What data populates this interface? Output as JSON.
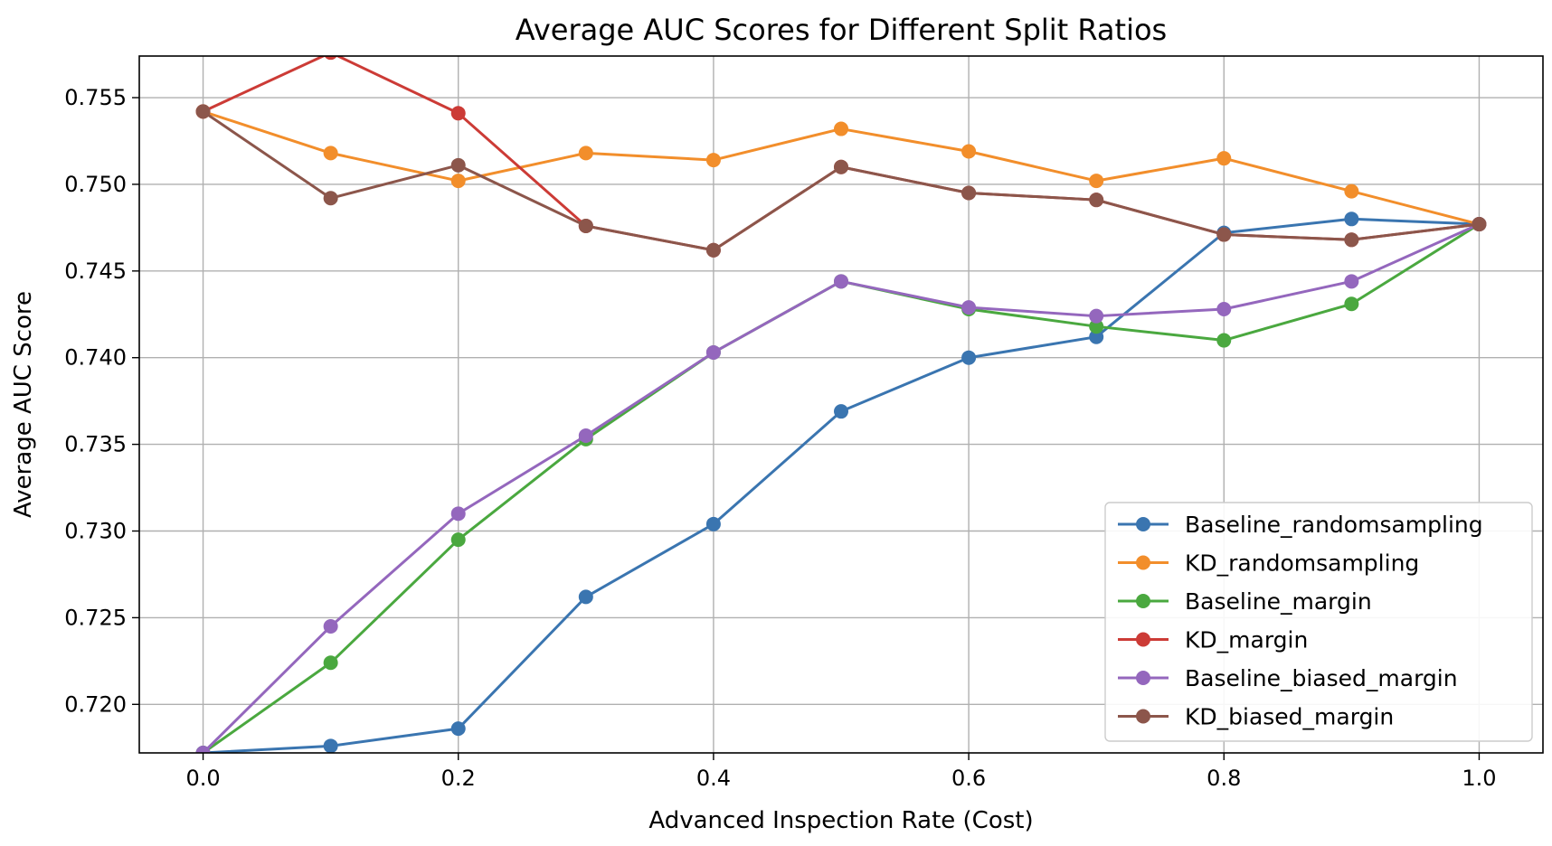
{
  "chart_data": {
    "type": "line",
    "title": "Average AUC Scores for Different Split Ratios",
    "xlabel": "Advanced Inspection Rate (Cost)",
    "ylabel": "Average AUC Score",
    "xlim": [
      -0.05,
      1.05
    ],
    "ylim": [
      0.7172,
      0.7574
    ],
    "x_ticks": [
      "0.0",
      "0.2",
      "0.4",
      "0.6",
      "0.8",
      "1.0"
    ],
    "x_tick_values": [
      0.0,
      0.2,
      0.4,
      0.6,
      0.8,
      1.0
    ],
    "y_ticks": [
      "0.720",
      "0.725",
      "0.730",
      "0.735",
      "0.740",
      "0.745",
      "0.750",
      "0.755"
    ],
    "y_tick_values": [
      0.72,
      0.725,
      0.73,
      0.735,
      0.74,
      0.745,
      0.75,
      0.755
    ],
    "grid": true,
    "legend_position": "bottom-right",
    "marker": "circle",
    "x": [
      0.0,
      0.1,
      0.2,
      0.3,
      0.4,
      0.5,
      0.6,
      0.7,
      0.8,
      0.9,
      1.0
    ],
    "series": [
      {
        "name": "Baseline_randomsampling",
        "color": "#3a75b0",
        "values": [
          0.7172,
          0.7176,
          0.7186,
          0.7262,
          0.7304,
          0.7369,
          0.74,
          0.7412,
          0.7472,
          0.748,
          0.7477
        ]
      },
      {
        "name": "KD_randomsampling",
        "color": "#f28e2b",
        "values": [
          0.7542,
          0.7518,
          0.7502,
          0.7518,
          0.7514,
          0.7532,
          0.7519,
          0.7502,
          0.7515,
          0.7496,
          0.7477
        ]
      },
      {
        "name": "Baseline_margin",
        "color": "#4aa83f",
        "values": [
          0.7172,
          0.7224,
          0.7295,
          0.7353,
          0.7403,
          0.7444,
          0.7428,
          0.7418,
          0.741,
          0.7431,
          0.7477
        ]
      },
      {
        "name": "KD_margin",
        "color": "#cc3b36",
        "values": [
          0.7542,
          0.7576,
          0.7541,
          0.7476,
          0.7462,
          0.751,
          0.7495,
          0.7491,
          0.7471,
          0.7468,
          0.7477
        ]
      },
      {
        "name": "Baseline_biased_margin",
        "color": "#9467bd",
        "values": [
          0.7172,
          0.7245,
          0.731,
          0.7355,
          0.7403,
          0.7444,
          0.7429,
          0.7424,
          0.7428,
          0.7444,
          0.7477
        ]
      },
      {
        "name": "KD_biased_margin",
        "color": "#8c564b",
        "values": [
          0.7542,
          0.7492,
          0.7511,
          0.7476,
          0.7462,
          0.751,
          0.7495,
          0.7491,
          0.7471,
          0.7468,
          0.7477
        ]
      }
    ]
  }
}
